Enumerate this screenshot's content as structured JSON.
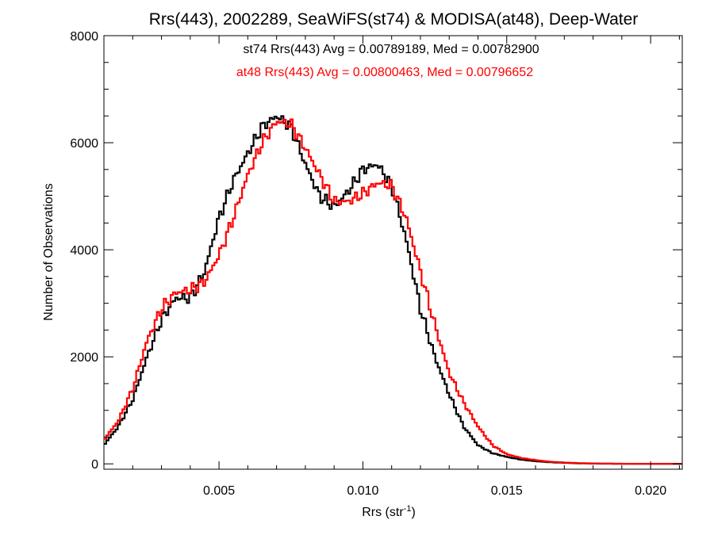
{
  "chart_data": {
    "type": "line",
    "title": "Rrs(443), 2002289, SeaWiFS(st74) & MODISA(at48), Deep-Water",
    "xlabel": "Rrs (str",
    "xlabel_sup": "-1",
    "xlabel_end": ")",
    "ylabel": "Number of Observations",
    "xlim": [
      0.001,
      0.0211
    ],
    "ylim": [
      -100,
      8000
    ],
    "xticks": [
      0.005,
      0.01,
      0.015,
      0.02
    ],
    "xtick_labels": [
      "0.005",
      "0.010",
      "0.015",
      "0.020"
    ],
    "yticks": [
      0,
      2000,
      4000,
      6000,
      8000
    ],
    "ytick_labels": [
      "0",
      "2000",
      "4000",
      "6000",
      "8000"
    ],
    "grid": false,
    "annotations": [
      {
        "text": "st74 Rrs(443) Avg = 0.00789189, Med = 0.00782900",
        "color": "#000000"
      },
      {
        "text": "at48 Rrs(443) Avg = 0.00800463, Med = 0.00796652",
        "color": "#ff0000"
      }
    ],
    "x": [
      0.001,
      0.0015,
      0.002,
      0.0025,
      0.003,
      0.0035,
      0.004,
      0.0045,
      0.005,
      0.0055,
      0.006,
      0.0065,
      0.007,
      0.0075,
      0.008,
      0.0085,
      0.009,
      0.0095,
      0.01,
      0.0105,
      0.011,
      0.0115,
      0.012,
      0.0125,
      0.013,
      0.0135,
      0.014,
      0.0145,
      0.015,
      0.0155,
      0.016,
      0.0165,
      0.017,
      0.0175,
      0.018,
      0.019,
      0.02,
      0.0211
    ],
    "series": [
      {
        "name": "st74",
        "color": "#000000",
        "values": [
          350,
          700,
          1200,
          2000,
          2700,
          3100,
          3100,
          3600,
          4600,
          5300,
          5800,
          6300,
          6500,
          6300,
          5600,
          5000,
          4800,
          5100,
          5500,
          5600,
          5200,
          4200,
          2900,
          2000,
          1300,
          700,
          350,
          200,
          130,
          80,
          50,
          30,
          20,
          10,
          5,
          2,
          0,
          0
        ]
      },
      {
        "name": "at48",
        "color": "#ff0000",
        "values": [
          450,
          800,
          1400,
          2300,
          2900,
          3200,
          3250,
          3400,
          3900,
          4600,
          5400,
          6000,
          6400,
          6350,
          5900,
          5400,
          4900,
          4900,
          5050,
          5250,
          5200,
          4600,
          3600,
          2600,
          1700,
          1150,
          700,
          350,
          180,
          110,
          70,
          40,
          25,
          15,
          8,
          3,
          0,
          0
        ]
      }
    ]
  }
}
